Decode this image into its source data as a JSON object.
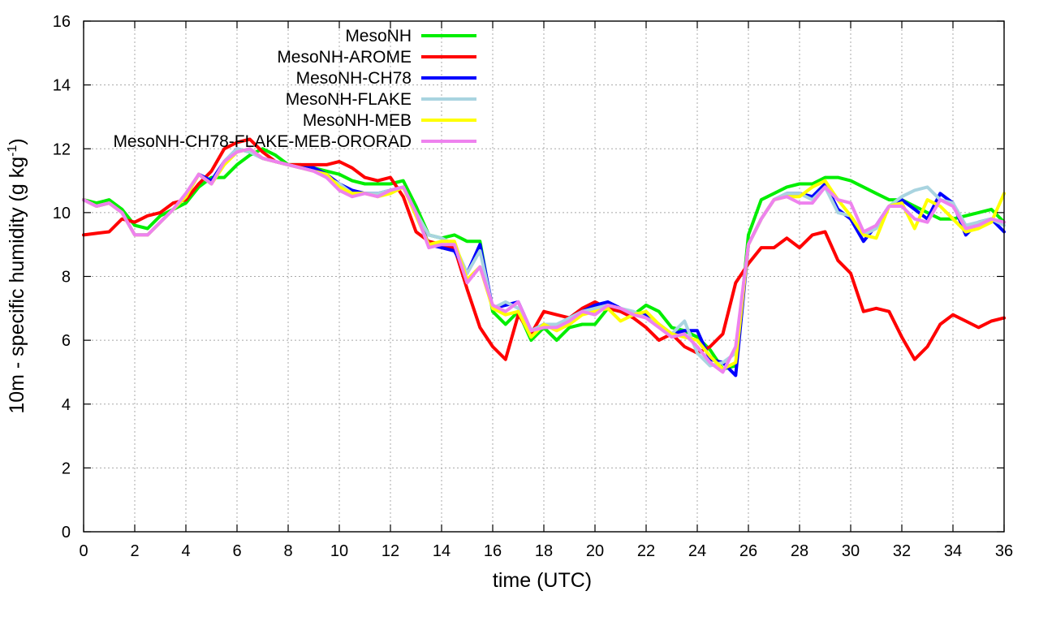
{
  "chart_data": {
    "type": "line",
    "xlabel": "time (UTC)",
    "ylabel_main": "10m - specific humidity (g kg",
    "ylabel_sup": "-1",
    "ylabel_tail": ")",
    "xlim": [
      0,
      36
    ],
    "ylim": [
      0,
      16
    ],
    "xticks": [
      0,
      2,
      4,
      6,
      8,
      10,
      12,
      14,
      16,
      18,
      20,
      22,
      24,
      26,
      28,
      30,
      32,
      34,
      36
    ],
    "yticks": [
      0,
      2,
      4,
      6,
      8,
      10,
      12,
      14,
      16
    ],
    "grid": true,
    "legend_position": "top-left",
    "x": [
      0,
      0.5,
      1,
      1.5,
      2,
      2.5,
      3,
      3.5,
      4,
      4.5,
      5,
      5.5,
      6,
      6.5,
      7,
      7.5,
      8,
      8.5,
      9,
      9.5,
      10,
      10.5,
      11,
      11.5,
      12,
      12.5,
      13,
      13.5,
      14,
      14.5,
      15,
      15.5,
      16,
      16.5,
      17,
      17.5,
      18,
      18.5,
      19,
      19.5,
      20,
      20.5,
      21,
      21.5,
      22,
      22.5,
      23,
      23.5,
      24,
      24.5,
      25,
      25.5,
      26,
      26.5,
      27,
      27.5,
      28,
      28.5,
      29,
      29.5,
      30,
      30.5,
      31,
      31.5,
      32,
      32.5,
      33,
      33.5,
      34,
      34.5,
      35,
      35.5,
      36
    ],
    "series": [
      {
        "name": "MesoNH",
        "color": "#00ee00",
        "values": [
          10.4,
          10.3,
          10.4,
          10.1,
          9.6,
          9.5,
          9.9,
          10.1,
          10.3,
          10.8,
          11.1,
          11.1,
          11.5,
          11.8,
          12.0,
          11.8,
          11.5,
          11.5,
          11.4,
          11.3,
          11.2,
          11.0,
          10.9,
          10.9,
          10.9,
          11.0,
          10.2,
          9.3,
          9.2,
          9.3,
          9.1,
          9.1,
          6.9,
          6.5,
          6.9,
          6.0,
          6.4,
          6.0,
          6.4,
          6.5,
          6.5,
          7.0,
          6.9,
          6.8,
          7.1,
          6.9,
          6.4,
          6.3,
          6.1,
          5.7,
          5.1,
          5.2,
          9.3,
          10.4,
          10.6,
          10.8,
          10.9,
          10.9,
          11.1,
          11.1,
          11.0,
          10.8,
          10.6,
          10.4,
          10.4,
          10.2,
          10.0,
          9.8,
          9.8,
          9.9,
          10.0,
          10.1,
          9.7
        ]
      },
      {
        "name": "MesoNH-AROME",
        "color": "#ff0000",
        "values": [
          9.3,
          9.35,
          9.4,
          9.8,
          9.7,
          9.9,
          10.0,
          10.3,
          10.4,
          10.9,
          11.3,
          12.0,
          12.2,
          12.3,
          11.9,
          11.6,
          11.5,
          11.5,
          11.5,
          11.5,
          11.6,
          11.4,
          11.1,
          11.0,
          11.1,
          10.5,
          9.4,
          9.1,
          9.0,
          8.9,
          7.6,
          6.4,
          5.8,
          5.4,
          6.8,
          6.2,
          6.9,
          6.8,
          6.7,
          7.0,
          7.2,
          7.0,
          6.9,
          6.7,
          6.4,
          6.0,
          6.2,
          5.8,
          5.6,
          5.8,
          6.2,
          7.8,
          8.4,
          8.9,
          8.9,
          9.2,
          8.9,
          9.3,
          9.4,
          8.5,
          8.1,
          6.9,
          7.0,
          6.9,
          6.1,
          5.4,
          5.8,
          6.5,
          6.8,
          6.6,
          6.4,
          6.6,
          6.7
        ]
      },
      {
        "name": "MesoNH-CH78",
        "color": "#0000ff",
        "values": [
          10.4,
          10.2,
          10.3,
          10.0,
          9.3,
          9.3,
          9.7,
          10.1,
          10.5,
          11.2,
          11.0,
          11.6,
          12.0,
          11.9,
          11.7,
          11.6,
          11.5,
          11.4,
          11.4,
          11.2,
          10.9,
          10.7,
          10.6,
          10.6,
          10.7,
          10.8,
          10.0,
          9.0,
          8.9,
          8.8,
          8.1,
          9.0,
          7.0,
          7.1,
          7.2,
          6.3,
          6.5,
          6.4,
          6.7,
          6.9,
          7.1,
          7.2,
          7.0,
          6.8,
          6.8,
          6.5,
          6.2,
          6.3,
          6.3,
          5.4,
          5.3,
          4.9,
          9.0,
          9.8,
          10.4,
          10.6,
          10.6,
          10.5,
          10.9,
          10.1,
          9.8,
          9.1,
          9.6,
          10.2,
          10.4,
          10.1,
          9.8,
          10.6,
          10.3,
          9.3,
          9.7,
          9.8,
          9.4
        ]
      },
      {
        "name": "MesoNH-FLAKE",
        "color": "#a9d4e0",
        "values": [
          10.4,
          10.2,
          10.3,
          10.0,
          9.3,
          9.3,
          9.7,
          10.1,
          10.5,
          11.2,
          10.9,
          11.6,
          12.0,
          11.9,
          11.7,
          11.6,
          11.5,
          11.4,
          11.3,
          11.1,
          10.9,
          10.6,
          10.6,
          10.6,
          10.7,
          10.8,
          10.0,
          9.3,
          9.2,
          9.0,
          8.1,
          8.8,
          7.0,
          7.2,
          7.0,
          6.3,
          6.5,
          6.5,
          6.7,
          6.9,
          7.0,
          7.1,
          7.0,
          6.9,
          6.7,
          6.5,
          6.2,
          6.6,
          5.6,
          5.2,
          5.3,
          5.6,
          9.0,
          9.8,
          10.4,
          10.6,
          10.6,
          10.4,
          10.8,
          10.0,
          9.9,
          9.3,
          9.5,
          10.2,
          10.5,
          10.7,
          10.8,
          10.4,
          10.3,
          9.6,
          9.7,
          9.8,
          9.6
        ]
      },
      {
        "name": "MesoNH-MEB",
        "color": "#ffff00",
        "values": [
          10.4,
          10.2,
          10.3,
          10.0,
          9.3,
          9.3,
          9.7,
          10.1,
          10.5,
          11.2,
          10.9,
          11.5,
          11.9,
          12.0,
          11.7,
          11.6,
          11.5,
          11.4,
          11.3,
          11.2,
          10.8,
          10.6,
          10.6,
          10.5,
          10.6,
          10.8,
          9.9,
          9.0,
          9.1,
          9.1,
          7.9,
          8.3,
          7.0,
          6.8,
          6.9,
          6.1,
          6.5,
          6.3,
          6.5,
          6.8,
          6.9,
          7.0,
          6.6,
          6.8,
          6.9,
          6.5,
          6.2,
          6.1,
          6.0,
          5.5,
          5.1,
          5.3,
          9.0,
          9.8,
          10.4,
          10.5,
          10.5,
          10.8,
          11.0,
          10.4,
          9.9,
          9.3,
          9.2,
          10.2,
          10.3,
          9.5,
          10.4,
          10.2,
          9.8,
          9.4,
          9.5,
          9.7,
          10.6
        ]
      },
      {
        "name": "MesoNH-CH78-FLAKE-MEB-ORORAD",
        "color": "#ee82ee",
        "values": [
          10.4,
          10.2,
          10.3,
          10.0,
          9.3,
          9.3,
          9.7,
          10.1,
          10.6,
          11.2,
          10.9,
          11.6,
          11.9,
          12.0,
          11.7,
          11.6,
          11.5,
          11.4,
          11.3,
          11.1,
          10.7,
          10.5,
          10.6,
          10.5,
          10.7,
          10.8,
          10.0,
          8.9,
          9.0,
          9.0,
          7.8,
          8.3,
          7.1,
          6.9,
          7.2,
          6.3,
          6.4,
          6.4,
          6.6,
          6.9,
          6.8,
          7.1,
          7.0,
          6.8,
          6.7,
          6.4,
          6.1,
          6.2,
          5.8,
          5.3,
          5.0,
          5.8,
          9.0,
          9.8,
          10.4,
          10.5,
          10.3,
          10.3,
          10.8,
          10.4,
          10.3,
          9.4,
          9.6,
          10.2,
          10.2,
          9.8,
          9.7,
          10.4,
          10.2,
          9.5,
          9.6,
          9.8,
          9.7
        ]
      }
    ]
  }
}
